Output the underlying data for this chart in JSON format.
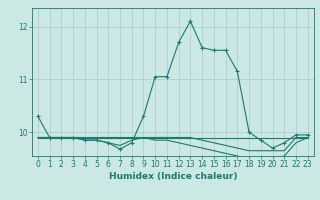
{
  "xlabel": "Humidex (Indice chaleur)",
  "bg_color": "#cce8e4",
  "grid_color": "#aacccc",
  "line_color": "#1a7a6e",
  "xlim": [
    -0.5,
    23.5
  ],
  "ylim": [
    9.55,
    12.35
  ],
  "yticks": [
    10,
    11,
    12
  ],
  "xticks": [
    0,
    1,
    2,
    3,
    4,
    5,
    6,
    7,
    8,
    9,
    10,
    11,
    12,
    13,
    14,
    15,
    16,
    17,
    18,
    19,
    20,
    21,
    22,
    23
  ],
  "series": [
    [
      10.3,
      9.9,
      9.9,
      9.9,
      9.85,
      9.85,
      9.8,
      9.68,
      9.8,
      10.3,
      11.05,
      11.05,
      11.7,
      12.1,
      11.6,
      11.55,
      11.55,
      11.15,
      10.0,
      9.85,
      9.7,
      9.8,
      9.95,
      9.95
    ],
    [
      9.9,
      9.9,
      9.9,
      9.9,
      9.9,
      9.9,
      9.9,
      9.9,
      9.9,
      9.9,
      9.9,
      9.9,
      9.9,
      9.9,
      9.85,
      9.8,
      9.75,
      9.7,
      9.65,
      9.65,
      9.65,
      9.65,
      9.9,
      9.9
    ],
    [
      9.9,
      9.9,
      9.9,
      9.9,
      9.85,
      9.85,
      9.8,
      9.75,
      9.85,
      9.9,
      9.85,
      9.85,
      9.8,
      9.75,
      9.7,
      9.65,
      9.6,
      9.55,
      9.5,
      9.5,
      9.5,
      9.55,
      9.8,
      9.9
    ],
    [
      9.9,
      9.9,
      9.9,
      9.9,
      9.9,
      9.9,
      9.9,
      9.9,
      9.9,
      9.9,
      9.9,
      9.9,
      9.9,
      9.9,
      9.9,
      9.9,
      9.9,
      9.9,
      9.9,
      9.9,
      9.9,
      9.9,
      9.9,
      9.9
    ]
  ],
  "markers": [
    true,
    false,
    false,
    false
  ],
  "marker_size": 2.5,
  "linewidth": 0.8,
  "xlabel_fontsize": 6.5,
  "tick_fontsize": 5.5
}
